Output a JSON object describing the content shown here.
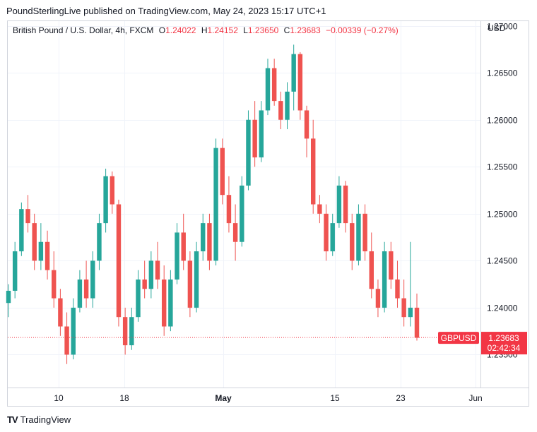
{
  "header": {
    "published": "PoundSterlingLive published on TradingView.com, May 24, 2023 15:17 UTC+1"
  },
  "legend": {
    "symbol": "British Pound / U.S. Dollar, 4h, FXCM",
    "o_label": "O",
    "o_value": "1.24022",
    "h_label": "H",
    "h_value": "1.24152",
    "l_label": "L",
    "l_value": "1.23650",
    "c_label": "C",
    "c_value": "1.23683",
    "change": "−0.00339 (−0.27%)"
  },
  "axis": {
    "currency": "USD"
  },
  "price_tag": {
    "symbol": "GBPUSD",
    "price": "1.23683",
    "countdown": "02:42:34"
  },
  "footer": {
    "brand": "TradingView"
  },
  "colors": {
    "up": "#26a69a",
    "down": "#ef5350",
    "grid": "#f0f3fa",
    "tag": "#f23645"
  },
  "chart_data": {
    "type": "candlestick",
    "y_ticks": [
      "1.23500",
      "1.24000",
      "1.24500",
      "1.25000",
      "1.25500",
      "1.26000",
      "1.26500",
      "1.27000"
    ],
    "x_ticks": [
      "10",
      "18",
      "May",
      "15",
      "23",
      "Jun"
    ],
    "ylim": [
      1.2315,
      1.2705
    ],
    "last_price": 1.23683,
    "series": [
      [
        1.2405,
        1.2425,
        1.239,
        1.2418
      ],
      [
        1.2418,
        1.247,
        1.241,
        1.246
      ],
      [
        1.246,
        1.2512,
        1.2455,
        1.2505
      ],
      [
        1.2505,
        1.252,
        1.248,
        1.249
      ],
      [
        1.249,
        1.25,
        1.244,
        1.245
      ],
      [
        1.245,
        1.249,
        1.244,
        1.247
      ],
      [
        1.247,
        1.2482,
        1.243,
        1.244
      ],
      [
        1.244,
        1.246,
        1.24,
        1.241
      ],
      [
        1.241,
        1.242,
        1.237,
        1.238
      ],
      [
        1.238,
        1.2395,
        1.234,
        1.235
      ],
      [
        1.235,
        1.241,
        1.2345,
        1.24
      ],
      [
        1.24,
        1.244,
        1.2395,
        1.243
      ],
      [
        1.243,
        1.245,
        1.24,
        1.241
      ],
      [
        1.241,
        1.246,
        1.24,
        1.245
      ],
      [
        1.245,
        1.25,
        1.244,
        1.249
      ],
      [
        1.249,
        1.2548,
        1.248,
        1.254
      ],
      [
        1.254,
        1.2545,
        1.25,
        1.251
      ],
      [
        1.251,
        1.2515,
        1.238,
        1.239
      ],
      [
        1.239,
        1.24,
        1.235,
        1.236
      ],
      [
        1.236,
        1.24,
        1.2355,
        1.239
      ],
      [
        1.239,
        1.244,
        1.2385,
        1.243
      ],
      [
        1.243,
        1.245,
        1.241,
        1.242
      ],
      [
        1.242,
        1.246,
        1.241,
        1.245
      ],
      [
        1.245,
        1.247,
        1.242,
        1.243
      ],
      [
        1.243,
        1.2445,
        1.237,
        1.238
      ],
      [
        1.238,
        1.244,
        1.2375,
        1.243
      ],
      [
        1.243,
        1.249,
        1.2425,
        1.248
      ],
      [
        1.248,
        1.25,
        1.244,
        1.245
      ],
      [
        1.245,
        1.246,
        1.239,
        1.24
      ],
      [
        1.24,
        1.247,
        1.2395,
        1.246
      ],
      [
        1.246,
        1.25,
        1.245,
        1.249
      ],
      [
        1.249,
        1.25,
        1.244,
        1.245
      ],
      [
        1.245,
        1.258,
        1.2445,
        1.257
      ],
      [
        1.257,
        1.258,
        1.251,
        1.252
      ],
      [
        1.252,
        1.254,
        1.248,
        1.249
      ],
      [
        1.249,
        1.251,
        1.245,
        1.247
      ],
      [
        1.247,
        1.254,
        1.2465,
        1.253
      ],
      [
        1.253,
        1.261,
        1.2525,
        1.26
      ],
      [
        1.26,
        1.262,
        1.255,
        1.256
      ],
      [
        1.256,
        1.262,
        1.2555,
        1.261
      ],
      [
        1.261,
        1.2665,
        1.2605,
        1.2655
      ],
      [
        1.2655,
        1.2665,
        1.2615,
        1.262
      ],
      [
        1.262,
        1.263,
        1.259,
        1.26
      ],
      [
        1.26,
        1.264,
        1.259,
        1.263
      ],
      [
        1.263,
        1.268,
        1.261,
        1.267
      ],
      [
        1.267,
        1.2672,
        1.26,
        1.261
      ],
      [
        1.261,
        1.2615,
        1.256,
        1.258
      ],
      [
        1.258,
        1.26,
        1.25,
        1.251
      ],
      [
        1.251,
        1.252,
        1.249,
        1.25
      ],
      [
        1.25,
        1.251,
        1.245,
        1.246
      ],
      [
        1.246,
        1.25,
        1.2455,
        1.249
      ],
      [
        1.249,
        1.254,
        1.2485,
        1.253
      ],
      [
        1.253,
        1.2535,
        1.248,
        1.249
      ],
      [
        1.249,
        1.25,
        1.244,
        1.245
      ],
      [
        1.245,
        1.251,
        1.2445,
        1.25
      ],
      [
        1.25,
        1.251,
        1.245,
        1.246
      ],
      [
        1.246,
        1.248,
        1.241,
        1.242
      ],
      [
        1.242,
        1.243,
        1.239,
        1.24
      ],
      [
        1.24,
        1.247,
        1.2395,
        1.246
      ],
      [
        1.246,
        1.247,
        1.242,
        1.243
      ],
      [
        1.243,
        1.245,
        1.24,
        1.241
      ],
      [
        1.241,
        1.243,
        1.238,
        1.239
      ],
      [
        1.239,
        1.247,
        1.238,
        1.24
      ],
      [
        1.24,
        1.2415,
        1.2365,
        1.2368
      ]
    ]
  }
}
